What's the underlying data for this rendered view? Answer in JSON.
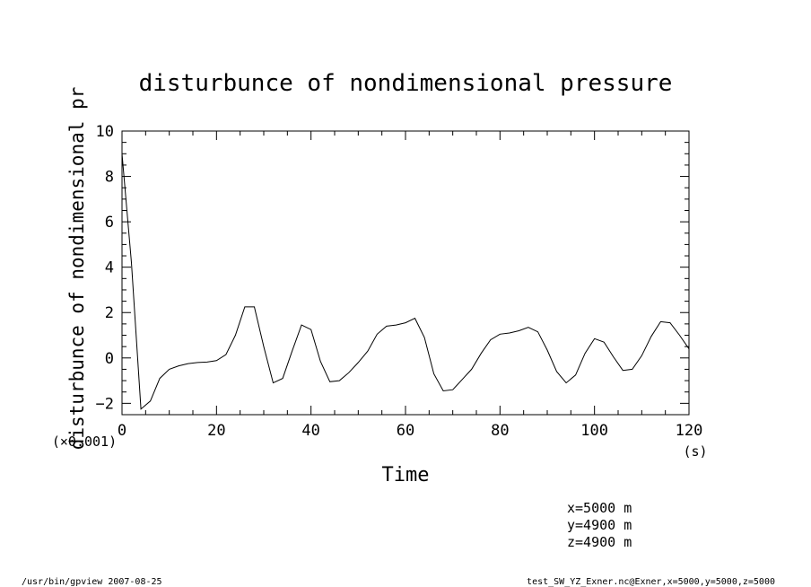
{
  "chart_data": {
    "type": "line",
    "title": "disturbunce of nondimensional pressure",
    "xlabel": "Time",
    "ylabel": "disturbunce of nondimensional pr",
    "x_unit": "(s)",
    "y_scale": "(×0.001)",
    "xlim": [
      0,
      120
    ],
    "ylim": [
      -2.5,
      10
    ],
    "x_ticks": [
      "0",
      "20",
      "40",
      "60",
      "80",
      "100",
      "120"
    ],
    "y_ticks": [
      "-2",
      "0",
      "2",
      "4",
      "6",
      "8",
      "10"
    ],
    "grid": false,
    "series": [
      {
        "x": [
          0,
          2,
          4,
          6,
          8,
          10,
          12,
          14,
          16,
          18,
          20,
          22,
          24,
          26,
          28,
          30,
          32,
          34,
          36,
          38,
          40,
          42,
          44,
          46,
          48,
          50,
          52,
          54,
          56,
          58,
          60,
          62,
          64,
          66,
          68,
          70,
          72,
          74,
          76,
          78,
          80,
          82,
          84,
          86,
          88,
          90,
          92,
          94,
          96,
          98,
          100,
          102,
          104,
          106,
          108,
          110,
          112,
          114,
          116,
          118,
          120
        ],
        "y": [
          9.0,
          4.2,
          -2.25,
          -1.9,
          -0.9,
          -0.5,
          -0.35,
          -0.25,
          -0.2,
          -0.18,
          -0.12,
          0.15,
          1.0,
          2.25,
          2.25,
          0.5,
          -1.1,
          -0.9,
          0.3,
          1.45,
          1.25,
          -0.15,
          -1.05,
          -1.0,
          -0.65,
          -0.2,
          0.3,
          1.05,
          1.4,
          1.45,
          1.55,
          1.75,
          0.9,
          -0.7,
          -1.45,
          -1.4,
          -0.95,
          -0.5,
          0.2,
          0.8,
          1.05,
          1.1,
          1.2,
          1.35,
          1.15,
          0.35,
          -0.6,
          -1.1,
          -0.75,
          0.2,
          0.85,
          0.7,
          0.05,
          -0.55,
          -0.5,
          0.1,
          0.95,
          1.6,
          1.55,
          1.0,
          0.4
        ]
      }
    ]
  },
  "info": {
    "x_line": "x=5000  m",
    "y_line": "y=4900  m",
    "z_line": "z=4900  m"
  },
  "footer": {
    "left": "/usr/bin/gpview   2007-08-25",
    "right": "test_SW_YZ_Exner.nc@Exner,x=5000,y=5000,z=5000"
  }
}
